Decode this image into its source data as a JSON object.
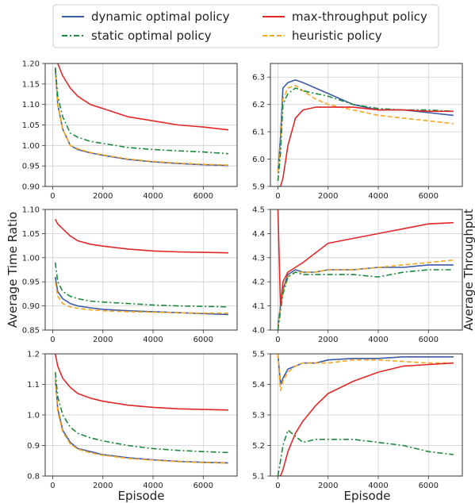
{
  "legend": {
    "items": [
      {
        "label": "dynamic optimal policy",
        "color": "#3b5ba5",
        "dash": "solid"
      },
      {
        "label": "static optimal policy",
        "color": "#1a8a3a",
        "dash": "dashdot"
      },
      {
        "label": "max-throughput policy",
        "color": "#e02828",
        "dash": "solid"
      },
      {
        "label": "heuristic policy",
        "color": "#f5a623",
        "dash": "dashed"
      }
    ]
  },
  "figure": {
    "left_ylabel": "Average Time Ratio",
    "right_ylabel": "Average Throughput",
    "xlabel": "Episode"
  },
  "chart_data": [
    {
      "type": "line",
      "panel": "row1-left",
      "ylim": [
        0.9,
        1.2
      ],
      "xlim": [
        0,
        7000
      ],
      "xticks": [
        "0",
        "2000",
        "4000",
        "6000"
      ],
      "yticks": [
        "0.90",
        "0.95",
        "1.00",
        "1.05",
        "1.10",
        "1.15",
        "1.20"
      ],
      "grid": true,
      "x": [
        100,
        200,
        400,
        700,
        1000,
        1500,
        2000,
        3000,
        4000,
        5000,
        6000,
        7000
      ],
      "series": [
        {
          "name": "dynamic optimal policy",
          "values": [
            1.19,
            1.1,
            1.04,
            1.0,
            0.99,
            0.982,
            0.976,
            0.966,
            0.96,
            0.956,
            0.953,
            0.951
          ]
        },
        {
          "name": "static optimal policy",
          "values": [
            1.19,
            1.12,
            1.07,
            1.03,
            1.02,
            1.01,
            1.005,
            0.995,
            0.99,
            0.987,
            0.984,
            0.98
          ]
        },
        {
          "name": "max-throughput policy",
          "values": [
            1.25,
            1.2,
            1.17,
            1.14,
            1.12,
            1.1,
            1.09,
            1.07,
            1.06,
            1.05,
            1.045,
            1.038
          ]
        },
        {
          "name": "heuristic policy",
          "values": [
            1.19,
            1.1,
            1.04,
            1.0,
            0.992,
            0.983,
            0.977,
            0.967,
            0.961,
            0.957,
            0.954,
            0.952
          ]
        }
      ]
    },
    {
      "type": "line",
      "panel": "row1-right",
      "ylim": [
        5.9,
        6.35
      ],
      "xlim": [
        0,
        7000
      ],
      "xticks": [
        "0",
        "2000",
        "4000",
        "6000"
      ],
      "yticks": [
        "5.9",
        "6.0",
        "6.1",
        "6.2",
        "6.3"
      ],
      "grid": true,
      "x": [
        0,
        100,
        200,
        400,
        700,
        1000,
        1500,
        2000,
        3000,
        4000,
        5000,
        6000,
        7000
      ],
      "series": [
        {
          "name": "dynamic optimal policy",
          "values": [
            5.95,
            6.08,
            6.26,
            6.28,
            6.29,
            6.28,
            6.26,
            6.24,
            6.2,
            6.18,
            6.18,
            6.17,
            6.16
          ]
        },
        {
          "name": "static optimal policy",
          "values": [
            5.92,
            6.02,
            6.2,
            6.24,
            6.26,
            6.25,
            6.24,
            6.23,
            6.2,
            6.185,
            6.18,
            6.18,
            6.175
          ]
        },
        {
          "name": "max-throughput policy",
          "values": [
            5.9,
            5.9,
            5.93,
            6.05,
            6.15,
            6.18,
            6.19,
            6.19,
            6.19,
            6.18,
            6.18,
            6.175,
            6.175
          ]
        },
        {
          "name": "heuristic policy",
          "values": [
            5.95,
            6.05,
            6.22,
            6.26,
            6.27,
            6.25,
            6.22,
            6.2,
            6.18,
            6.16,
            6.15,
            6.14,
            6.13
          ]
        }
      ]
    },
    {
      "type": "line",
      "panel": "row2-left",
      "ylim": [
        0.85,
        1.1
      ],
      "xlim": [
        0,
        7000
      ],
      "xticks": [
        "0",
        "2000",
        "4000",
        "6000"
      ],
      "yticks": [
        "0.85",
        "0.90",
        "0.95",
        "1.00",
        "1.05",
        "1.10"
      ],
      "grid": true,
      "x": [
        100,
        200,
        400,
        700,
        1000,
        1500,
        2000,
        3000,
        4000,
        5000,
        6000,
        7000
      ],
      "series": [
        {
          "name": "dynamic optimal policy",
          "values": [
            0.96,
            0.93,
            0.915,
            0.905,
            0.9,
            0.896,
            0.893,
            0.89,
            0.888,
            0.886,
            0.884,
            0.882
          ]
        },
        {
          "name": "static optimal policy",
          "values": [
            0.99,
            0.95,
            0.93,
            0.92,
            0.915,
            0.91,
            0.908,
            0.905,
            0.902,
            0.9,
            0.899,
            0.898
          ]
        },
        {
          "name": "max-throughput policy",
          "values": [
            1.08,
            1.07,
            1.06,
            1.045,
            1.035,
            1.028,
            1.024,
            1.018,
            1.014,
            1.012,
            1.011,
            1.01
          ]
        },
        {
          "name": "heuristic policy",
          "values": [
            0.95,
            0.92,
            0.905,
            0.898,
            0.895,
            0.892,
            0.89,
            0.888,
            0.887,
            0.886,
            0.885,
            0.885
          ]
        }
      ]
    },
    {
      "type": "line",
      "panel": "row2-right",
      "ylim": [
        4.0,
        4.5
      ],
      "xlim": [
        0,
        7000
      ],
      "xticks": [
        "0",
        "2000",
        "4000",
        "6000"
      ],
      "yticks": [
        "4.0",
        "4.1",
        "4.2",
        "4.3",
        "4.4",
        "4.5"
      ],
      "grid": true,
      "x": [
        0,
        100,
        200,
        400,
        700,
        1000,
        1500,
        2000,
        3000,
        4000,
        5000,
        6000,
        7000
      ],
      "series": [
        {
          "name": "dynamic optimal policy",
          "values": [
            4.02,
            4.1,
            4.17,
            4.23,
            4.25,
            4.24,
            4.24,
            4.25,
            4.25,
            4.26,
            4.26,
            4.27,
            4.27
          ]
        },
        {
          "name": "static optimal policy",
          "values": [
            4.0,
            4.08,
            4.15,
            4.22,
            4.24,
            4.23,
            4.23,
            4.23,
            4.23,
            4.22,
            4.24,
            4.25,
            4.25
          ]
        },
        {
          "name": "max-throughput policy",
          "values": [
            4.5,
            4.1,
            4.2,
            4.24,
            4.26,
            4.28,
            4.32,
            4.36,
            4.38,
            4.4,
            4.42,
            4.44,
            4.445
          ]
        },
        {
          "name": "heuristic policy",
          "values": [
            4.01,
            4.09,
            4.16,
            4.22,
            4.24,
            4.24,
            4.24,
            4.25,
            4.25,
            4.26,
            4.27,
            4.28,
            4.29
          ]
        }
      ]
    },
    {
      "type": "line",
      "panel": "row3-left",
      "ylim": [
        0.8,
        1.2
      ],
      "xlim": [
        0,
        7000
      ],
      "xticks": [
        "0",
        "2000",
        "4000",
        "6000"
      ],
      "yticks": [
        "0.8",
        "0.9",
        "1.0",
        "1.1",
        "1.2"
      ],
      "grid": true,
      "x": [
        100,
        200,
        400,
        700,
        1000,
        1500,
        2000,
        3000,
        4000,
        5000,
        6000,
        7000
      ],
      "series": [
        {
          "name": "dynamic optimal policy",
          "values": [
            1.12,
            1.02,
            0.95,
            0.91,
            0.89,
            0.88,
            0.87,
            0.86,
            0.853,
            0.848,
            0.845,
            0.843
          ]
        },
        {
          "name": "static optimal policy",
          "values": [
            1.14,
            1.06,
            1.0,
            0.96,
            0.94,
            0.925,
            0.915,
            0.9,
            0.89,
            0.884,
            0.88,
            0.877
          ]
        },
        {
          "name": "max-throughput policy",
          "values": [
            1.2,
            1.16,
            1.12,
            1.09,
            1.07,
            1.055,
            1.045,
            1.032,
            1.025,
            1.02,
            1.018,
            1.016
          ]
        },
        {
          "name": "heuristic policy",
          "values": [
            1.12,
            1.01,
            0.945,
            0.905,
            0.888,
            0.876,
            0.868,
            0.858,
            0.852,
            0.847,
            0.844,
            0.842
          ]
        }
      ]
    },
    {
      "type": "line",
      "panel": "row3-right",
      "ylim": [
        5.1,
        5.5
      ],
      "xlim": [
        0,
        7000
      ],
      "xticks": [
        "0",
        "2000",
        "4000",
        "6000"
      ],
      "yticks": [
        "5.1",
        "5.2",
        "5.3",
        "5.4",
        "5.5"
      ],
      "grid": true,
      "x": [
        0,
        100,
        200,
        400,
        700,
        1000,
        1500,
        2000,
        3000,
        4000,
        5000,
        6000,
        7000
      ],
      "series": [
        {
          "name": "dynamic optimal policy",
          "values": [
            5.5,
            5.4,
            5.42,
            5.45,
            5.46,
            5.47,
            5.47,
            5.48,
            5.485,
            5.485,
            5.49,
            5.49,
            5.49
          ]
        },
        {
          "name": "static optimal policy",
          "values": [
            5.1,
            5.15,
            5.2,
            5.25,
            5.23,
            5.21,
            5.22,
            5.22,
            5.22,
            5.21,
            5.2,
            5.18,
            5.17
          ]
        },
        {
          "name": "max-throughput policy",
          "values": [
            5.1,
            5.1,
            5.12,
            5.18,
            5.24,
            5.28,
            5.33,
            5.37,
            5.41,
            5.44,
            5.46,
            5.465,
            5.47
          ]
        },
        {
          "name": "heuristic policy",
          "values": [
            5.5,
            5.38,
            5.41,
            5.44,
            5.46,
            5.47,
            5.47,
            5.47,
            5.48,
            5.48,
            5.475,
            5.47,
            5.47
          ]
        }
      ]
    }
  ]
}
